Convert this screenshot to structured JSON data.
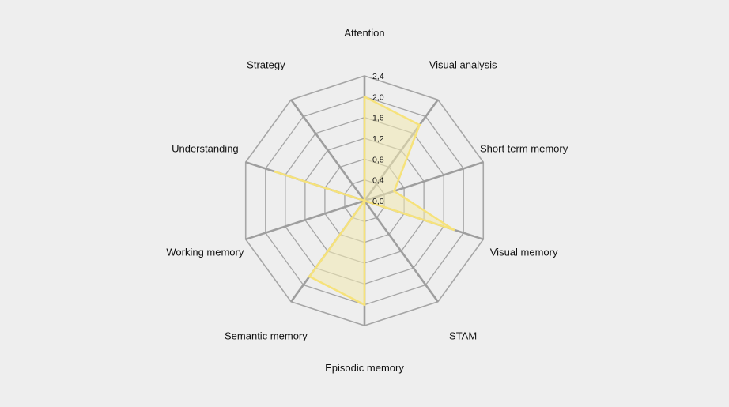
{
  "chart_data": {
    "type": "radar",
    "categories": [
      "Attention",
      "Visual analysis",
      "Short term memory",
      "Visual memory",
      "STAM",
      "Episodic memory",
      "Semantic memory",
      "Working memory",
      "Understanding",
      "Strategy"
    ],
    "series": [
      {
        "values": [
          2.0,
          1.8,
          0.6,
          1.8,
          0.0,
          2.0,
          1.8,
          0.0,
          1.8,
          0.0
        ]
      }
    ],
    "rlim": [
      0,
      2.4
    ],
    "ticks": [
      "0,0",
      "0,4",
      "0,8",
      "1,2",
      "1,6",
      "2,0",
      "2,4"
    ],
    "tick_values": [
      0,
      0.4,
      0.8,
      1.2,
      1.6,
      2.0,
      2.4
    ],
    "legend": "none",
    "colors": {
      "series_stroke": "#f6e27a",
      "series_fill": "#f3e9b0",
      "grid": "#a6a6a6",
      "spoke": "#9e9e9e",
      "background": "#eeeeee"
    }
  }
}
